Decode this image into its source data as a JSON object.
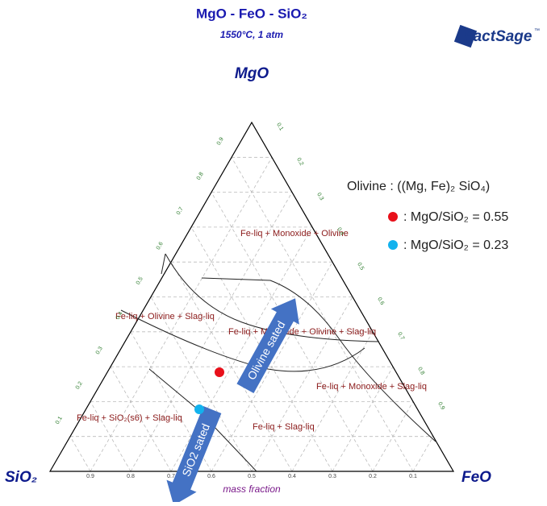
{
  "header": {
    "title": "MgO - FeO - SiO₂",
    "subtitle": "1550°C, 1 atm",
    "logo": "FactSage",
    "logo_mark": "™"
  },
  "vertices": {
    "top": "MgO",
    "left": "SiO₂",
    "right": "FeO"
  },
  "axis_note": "mass fraction",
  "ticks": {
    "bottom": [
      "0.9",
      "0.8",
      "0.7",
      "0.6",
      "0.5",
      "0.4",
      "0.3",
      "0.2",
      "0.1"
    ],
    "left": [
      "0.1",
      "0.2",
      "0.3",
      "0.4",
      "0.5",
      "0.6",
      "0.7",
      "0.8",
      "0.9"
    ],
    "right": [
      "0.1",
      "0.2",
      "0.3",
      "0.4",
      "0.5",
      "0.6",
      "0.7",
      "0.8",
      "0.9"
    ]
  },
  "regions": [
    "Fe-liq + Monoxide + Olivine",
    "Fe-liq + Olivine + Slag-liq",
    "Fe-liq + Monoxide + Olivine + Slag-liq",
    "Fe-liq + Monoxide + Slag-liq",
    "Fe-liq + SiO₂(s6) + Slag-liq",
    "Fe-liq + Slag-liq"
  ],
  "arrows": [
    {
      "label": "Olivine sated"
    },
    {
      "label": "SiO2 sated"
    }
  ],
  "legend": {
    "title": "Olivine : ((Mg, Fe)₂ SiO₄)",
    "items": [
      {
        "label": ": MgO/SiO₂ = 0.55"
      },
      {
        "label": ": MgO/SiO₂ = 0.23"
      }
    ]
  }
}
